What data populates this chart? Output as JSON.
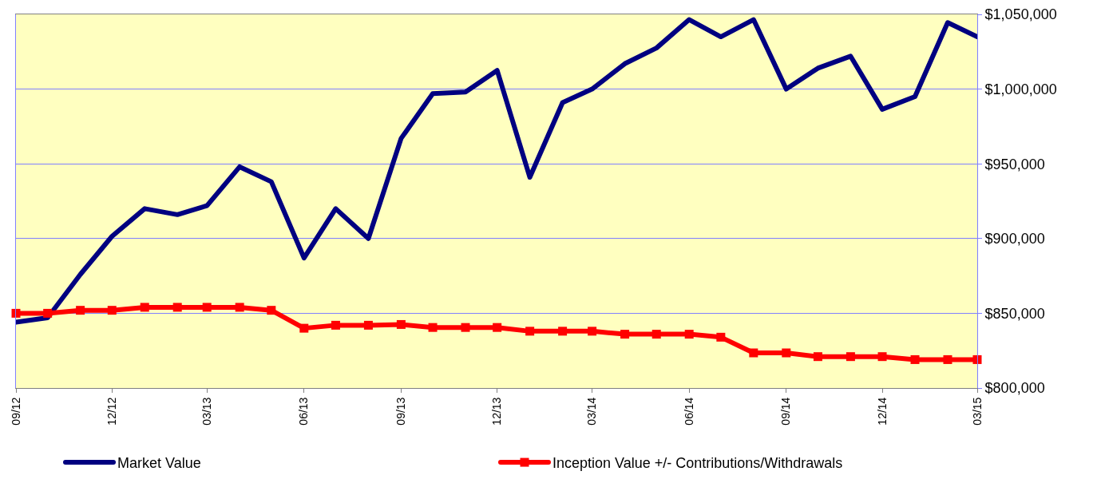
{
  "chart_data": {
    "type": "line",
    "x": [
      "2012-09",
      "2012-10",
      "2012-11",
      "2012-12",
      "2013-01",
      "2013-02",
      "2013-03",
      "2013-04",
      "2013-05",
      "2013-06",
      "2013-07",
      "2013-08",
      "2013-09",
      "2013-10",
      "2013-11",
      "2013-12",
      "2014-01",
      "2014-02",
      "2014-03",
      "2014-04",
      "2014-05",
      "2014-06",
      "2014-07",
      "2014-08",
      "2014-09",
      "2014-10",
      "2014-11",
      "2014-12",
      "2015-01",
      "2015-02",
      "2015-03"
    ],
    "series": [
      {
        "name": "Market Value",
        "color": "#000080",
        "marker": "none",
        "values": [
          844000,
          847000,
          876000,
          901500,
          920000,
          916000,
          922000,
          948000,
          938000,
          887000,
          920000,
          900000,
          967000,
          997000,
          998000,
          1012500,
          941000,
          991000,
          1000000,
          1017000,
          1027500,
          1046500,
          1035000,
          1046500,
          1000000,
          1014000,
          1022000,
          986500,
          995000,
          1044500,
          1035000
        ]
      },
      {
        "name": "Inception Value +/- Contributions/Withdrawals",
        "color": "#ff0000",
        "marker": "square",
        "values": [
          850000,
          850000,
          852000,
          852000,
          854000,
          854000,
          854000,
          854000,
          852000,
          840000,
          842000,
          842000,
          842500,
          840500,
          840500,
          840500,
          838000,
          838000,
          838000,
          836000,
          836000,
          836000,
          834000,
          823500,
          823500,
          821000,
          821000,
          821000,
          819000,
          819000,
          819000
        ]
      }
    ],
    "xlim": [
      "2012-09",
      "2015-03"
    ],
    "xticks": [
      {
        "value": "2012-09",
        "label": "09/12"
      },
      {
        "value": "2012-12",
        "label": "12/12"
      },
      {
        "value": "2013-03",
        "label": "03/13"
      },
      {
        "value": "2013-06",
        "label": "06/13"
      },
      {
        "value": "2013-09",
        "label": "09/13"
      },
      {
        "value": "2013-12",
        "label": "12/13"
      },
      {
        "value": "2014-03",
        "label": "03/14"
      },
      {
        "value": "2014-06",
        "label": "06/14"
      },
      {
        "value": "2014-09",
        "label": "09/14"
      },
      {
        "value": "2014-12",
        "label": "12/14"
      },
      {
        "value": "2015-03",
        "label": "03/15"
      }
    ],
    "ylim": [
      800000,
      1050000
    ],
    "yticks": [
      {
        "value": 800000,
        "label": "$800,000"
      },
      {
        "value": 850000,
        "label": "$850,000"
      },
      {
        "value": 900000,
        "label": "$900,000"
      },
      {
        "value": 950000,
        "label": "$950,000"
      },
      {
        "value": 1000000,
        "label": "$1,000,000"
      },
      {
        "value": 1050000,
        "label": "$1,050,000"
      }
    ],
    "grid": "y",
    "legend": "bottom",
    "line_style": "solid"
  }
}
